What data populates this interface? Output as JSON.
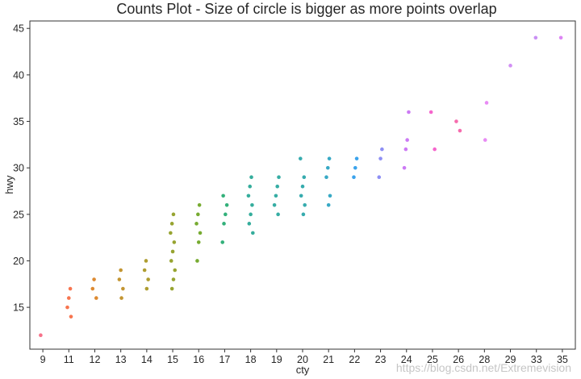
{
  "chart_data": {
    "type": "scatter",
    "title": "Counts Plot - Size of circle is bigger as more points overlap",
    "xlabel": "cty",
    "ylabel": "hwy",
    "categories": [
      "9",
      "11",
      "12",
      "13",
      "14",
      "15",
      "16",
      "17",
      "18",
      "19",
      "20",
      "21",
      "22",
      "23",
      "24",
      "25",
      "26",
      "28",
      "29",
      "33",
      "35"
    ],
    "yticks": [
      15,
      20,
      25,
      30,
      35,
      40,
      45
    ],
    "ylim": [
      10.5,
      45.8
    ],
    "grid": false,
    "legend": "none",
    "colors": [
      "#f77189",
      "#f7754f",
      "#dd8a31",
      "#c39532",
      "#ae9d31",
      "#97a431",
      "#77ab31",
      "#33b07a",
      "#35ad9c",
      "#36ada4",
      "#36abae",
      "#38a9c5",
      "#3ba3ec",
      "#8e8ff4",
      "#cc7af4",
      "#f565cc",
      "#f66bad",
      "#e88bf4",
      "#d18ff4",
      "#c98ff4",
      "#dd85f4"
    ],
    "series": [
      {
        "x": "9",
        "values": [
          12
        ]
      },
      {
        "x": "11",
        "values": [
          14,
          15,
          16,
          17
        ]
      },
      {
        "x": "12",
        "values": [
          16,
          17,
          18
        ]
      },
      {
        "x": "13",
        "values": [
          16,
          17,
          18,
          19
        ]
      },
      {
        "x": "14",
        "values": [
          17,
          18,
          19,
          20
        ]
      },
      {
        "x": "15",
        "values": [
          17,
          18,
          19,
          20,
          21,
          22,
          23,
          24,
          25
        ]
      },
      {
        "x": "16",
        "values": [
          20,
          22,
          23,
          24,
          25,
          26
        ]
      },
      {
        "x": "17",
        "values": [
          22,
          24,
          25,
          26,
          27
        ]
      },
      {
        "x": "18",
        "values": [
          23,
          24,
          25,
          26,
          27,
          28,
          29
        ]
      },
      {
        "x": "19",
        "values": [
          25,
          26,
          27,
          28,
          29
        ]
      },
      {
        "x": "20",
        "values": [
          25,
          26,
          27,
          28,
          29,
          31
        ]
      },
      {
        "x": "21",
        "values": [
          26,
          27,
          29,
          30,
          31
        ]
      },
      {
        "x": "22",
        "values": [
          29,
          30,
          31
        ]
      },
      {
        "x": "23",
        "values": [
          29,
          31,
          32
        ]
      },
      {
        "x": "24",
        "values": [
          30,
          32,
          33,
          36
        ]
      },
      {
        "x": "25",
        "values": [
          32,
          36
        ]
      },
      {
        "x": "26",
        "values": [
          34,
          35
        ]
      },
      {
        "x": "28",
        "values": [
          33,
          37
        ]
      },
      {
        "x": "29",
        "values": [
          41
        ]
      },
      {
        "x": "33",
        "values": [
          44
        ]
      },
      {
        "x": "35",
        "values": [
          44
        ]
      }
    ]
  },
  "watermark": "https://blog.csdn.net/Extremevision"
}
